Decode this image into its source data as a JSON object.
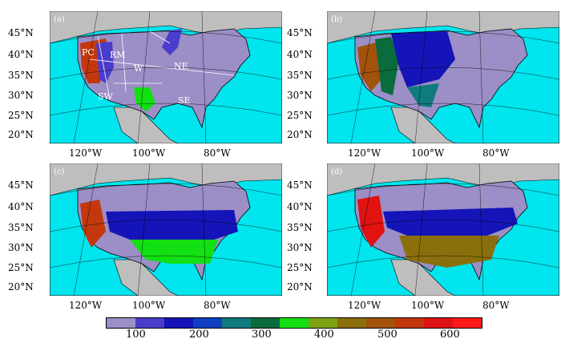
{
  "colors": {
    "ocean": "#00e5ee",
    "land_outside": "#bebebe",
    "levels": [
      "#9c8ec6",
      "#4a3dcb",
      "#1414b8",
      "#0d3fc0",
      "#0f7b7e",
      "#0a6b3d",
      "#12e012",
      "#7fa314",
      "#8a6f0c",
      "#a2520b",
      "#c2380c",
      "#e01212",
      "#ff1a1a"
    ]
  },
  "panels": [
    {
      "tag": "(a)",
      "scheme": "a"
    },
    {
      "tag": "(b)",
      "scheme": "b"
    },
    {
      "tag": "(c)",
      "scheme": "c"
    },
    {
      "tag": "(d)",
      "scheme": "d"
    }
  ],
  "lat_labels": [
    "45°N",
    "40°N",
    "35°N",
    "30°N",
    "25°N",
    "20°N"
  ],
  "lon_labels": [
    "120°W",
    "100°W",
    "80°W"
  ],
  "region_labels": [
    "PC",
    "RM",
    "W",
    "NE",
    "SW",
    "SE"
  ],
  "colorbar_labels": [
    "100",
    "200",
    "300",
    "400",
    "500",
    "600"
  ]
}
